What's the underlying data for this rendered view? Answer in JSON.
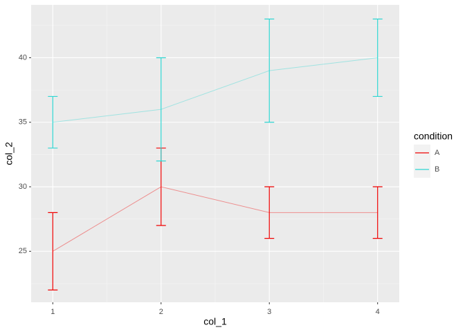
{
  "chart_data": {
    "type": "errorbar-line",
    "x_label": "col_1",
    "y_label": "col_2",
    "legend_title": "condition",
    "x": [
      1,
      2,
      3,
      4
    ],
    "series": [
      {
        "name": "A",
        "color": "#f00000",
        "values": [
          25,
          30,
          28,
          28
        ],
        "lower": [
          22,
          27,
          26,
          26
        ],
        "upper": [
          28,
          33,
          30,
          30
        ]
      },
      {
        "name": "B",
        "color": "#2ed6d2",
        "values": [
          35,
          36,
          39,
          40
        ],
        "lower": [
          33,
          32,
          35,
          37
        ],
        "upper": [
          37,
          40,
          43,
          43
        ]
      }
    ],
    "xlim": [
      0.8,
      4.2
    ],
    "xticks": [
      1,
      2,
      3,
      4
    ],
    "ylim": [
      21.05,
      44.1
    ],
    "yticks": [
      25,
      30,
      35,
      40
    ],
    "grid": true,
    "legend_position": "right"
  }
}
